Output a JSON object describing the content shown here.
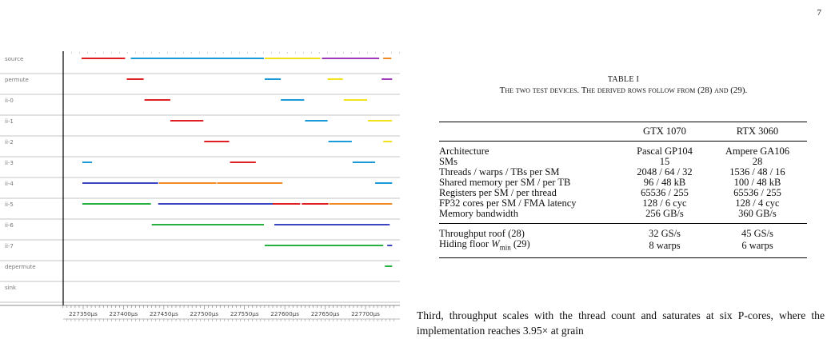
{
  "page_number": "7",
  "figure": {
    "lanes": [
      "source",
      "permute",
      "ii-0",
      "ii-1",
      "ii-2",
      "ii-3",
      "ii-4",
      "ii-5",
      "ii-6",
      "ii-7",
      "depermute",
      "sink"
    ],
    "ticks": [
      "227350µs",
      "227400µs",
      "227450µs",
      "227500µs",
      "227550µs",
      "227600µs",
      "227650µs",
      "227700µs"
    ],
    "tick_values": [
      227350,
      227400,
      227450,
      227500,
      227550,
      227600,
      227650,
      227700
    ],
    "colors": {
      "red": "#e02020",
      "blue": "#1a9ad6",
      "yellow": "#f2e21a",
      "purple": "#a03ab8",
      "orange": "#f08a24",
      "indigo": "#3c46c0",
      "green": "#26b040"
    },
    "segments": [
      {
        "lane": 0,
        "start": 227348,
        "end": 227402,
        "color": "red"
      },
      {
        "lane": 0,
        "start": 227409,
        "end": 227574,
        "color": "blue"
      },
      {
        "lane": 0,
        "start": 227575,
        "end": 227644,
        "color": "yellow"
      },
      {
        "lane": 0,
        "start": 227646,
        "end": 227717,
        "color": "purple"
      },
      {
        "lane": 0,
        "start": 227722,
        "end": 227732,
        "color": "orange"
      },
      {
        "lane": 1,
        "start": 227404,
        "end": 227425,
        "color": "red"
      },
      {
        "lane": 1,
        "start": 227575,
        "end": 227595,
        "color": "blue"
      },
      {
        "lane": 1,
        "start": 227653,
        "end": 227672,
        "color": "yellow"
      },
      {
        "lane": 1,
        "start": 227720,
        "end": 227733,
        "color": "purple"
      },
      {
        "lane": 2,
        "start": 227426,
        "end": 227458,
        "color": "red"
      },
      {
        "lane": 2,
        "start": 227595,
        "end": 227624,
        "color": "blue"
      },
      {
        "lane": 2,
        "start": 227673,
        "end": 227702,
        "color": "yellow"
      },
      {
        "lane": 3,
        "start": 227458,
        "end": 227499,
        "color": "red"
      },
      {
        "lane": 3,
        "start": 227625,
        "end": 227653,
        "color": "blue"
      },
      {
        "lane": 3,
        "start": 227703,
        "end": 227733,
        "color": "yellow"
      },
      {
        "lane": 4,
        "start": 227500,
        "end": 227531,
        "color": "red"
      },
      {
        "lane": 4,
        "start": 227654,
        "end": 227683,
        "color": "blue"
      },
      {
        "lane": 4,
        "start": 227722,
        "end": 227733,
        "color": "yellow"
      },
      {
        "lane": 5,
        "start": 227349,
        "end": 227361,
        "color": "blue"
      },
      {
        "lane": 5,
        "start": 227532,
        "end": 227564,
        "color": "red"
      },
      {
        "lane": 5,
        "start": 227684,
        "end": 227712,
        "color": "blue"
      },
      {
        "lane": 6,
        "start": 227349,
        "end": 227443,
        "color": "indigo"
      },
      {
        "lane": 6,
        "start": 227444,
        "end": 227515,
        "color": "orange"
      },
      {
        "lane": 6,
        "start": 227516,
        "end": 227597,
        "color": "orange"
      },
      {
        "lane": 6,
        "start": 227712,
        "end": 227733,
        "color": "blue"
      },
      {
        "lane": 7,
        "start": 227349,
        "end": 227434,
        "color": "green"
      },
      {
        "lane": 7,
        "start": 227443,
        "end": 227590,
        "color": "indigo"
      },
      {
        "lane": 7,
        "start": 227585,
        "end": 227619,
        "color": "red"
      },
      {
        "lane": 7,
        "start": 227621,
        "end": 227654,
        "color": "red"
      },
      {
        "lane": 7,
        "start": 227655,
        "end": 227733,
        "color": "orange"
      },
      {
        "lane": 8,
        "start": 227435,
        "end": 227574,
        "color": "green"
      },
      {
        "lane": 8,
        "start": 227587,
        "end": 227730,
        "color": "indigo"
      },
      {
        "lane": 9,
        "start": 227575,
        "end": 227722,
        "color": "green"
      },
      {
        "lane": 9,
        "start": 227727,
        "end": 227733,
        "color": "indigo"
      },
      {
        "lane": 10,
        "start": 227724,
        "end": 227733,
        "color": "green"
      }
    ]
  },
  "table": {
    "title": "TABLE I",
    "caption": "The two test devices. The derived rows follow from (28) and (29).",
    "headers": [
      "",
      "GTX 1070",
      "RTX 3060"
    ],
    "rows_main": [
      [
        "Architecture",
        "Pascal GP104",
        "Ampere GA106"
      ],
      [
        "SMs",
        "15",
        "28"
      ],
      [
        "Threads / warps / TBs per SM",
        "2048 / 64 / 32",
        "1536 / 48 / 16"
      ],
      [
        "Shared memory per SM / per TB",
        "96 / 48 kB",
        "100 / 48 kB"
      ],
      [
        "Registers per SM / per thread",
        "65536 / 255",
        "65536 / 255"
      ],
      [
        "FP32 cores per SM / FMA latency",
        "128 / 6 cyc",
        "128 / 4 cyc"
      ],
      [
        "Memory bandwidth",
        "256 GB/s",
        "360 GB/s"
      ]
    ],
    "rows_derived": [
      [
        "Throughput roof (28)",
        "32 GS/s",
        "45 GS/s"
      ],
      [
        "Hiding floor Wmin (29)",
        "8 warps",
        "6 warps"
      ]
    ]
  },
  "body_text": "Third, throughput scales with the thread count and saturates at six P-cores, where the implementation reaches 3.95× at grain"
}
